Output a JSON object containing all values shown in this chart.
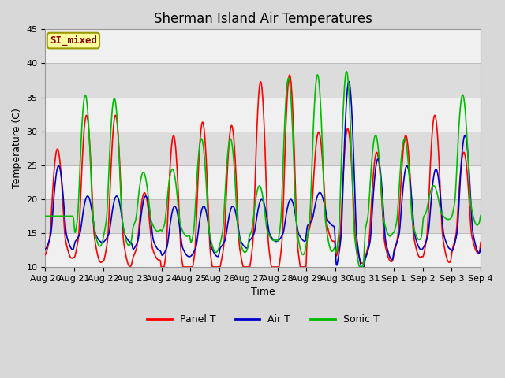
{
  "title": "Sherman Island Air Temperatures",
  "xlabel": "Time",
  "ylabel": "Temperature (C)",
  "ylim": [
    10,
    45
  ],
  "yticks": [
    10,
    15,
    20,
    25,
    30,
    35,
    40,
    45
  ],
  "xtick_labels": [
    "Aug 20",
    "Aug 21",
    "Aug 22",
    "Aug 23",
    "Aug 24",
    "Aug 25",
    "Aug 26",
    "Aug 27",
    "Aug 28",
    "Aug 29",
    "Aug 30",
    "Aug 31",
    "Sep 1",
    "Sep 2",
    "Sep 3",
    "Sep 4"
  ],
  "panel_color": "#FF0000",
  "air_color": "#0000CC",
  "sonic_color": "#00BB00",
  "figure_bg": "#D8D8D8",
  "plot_bg_light": "#F0F0F0",
  "plot_bg_dark": "#DCDCDC",
  "legend_label": "SI_mixed",
  "legend_bg": "#FFFFA0",
  "legend_border": "#999900",
  "legend_text_color": "#880000",
  "line_width": 1.2,
  "font_size": 9,
  "title_font_size": 12,
  "tick_font_size": 8
}
